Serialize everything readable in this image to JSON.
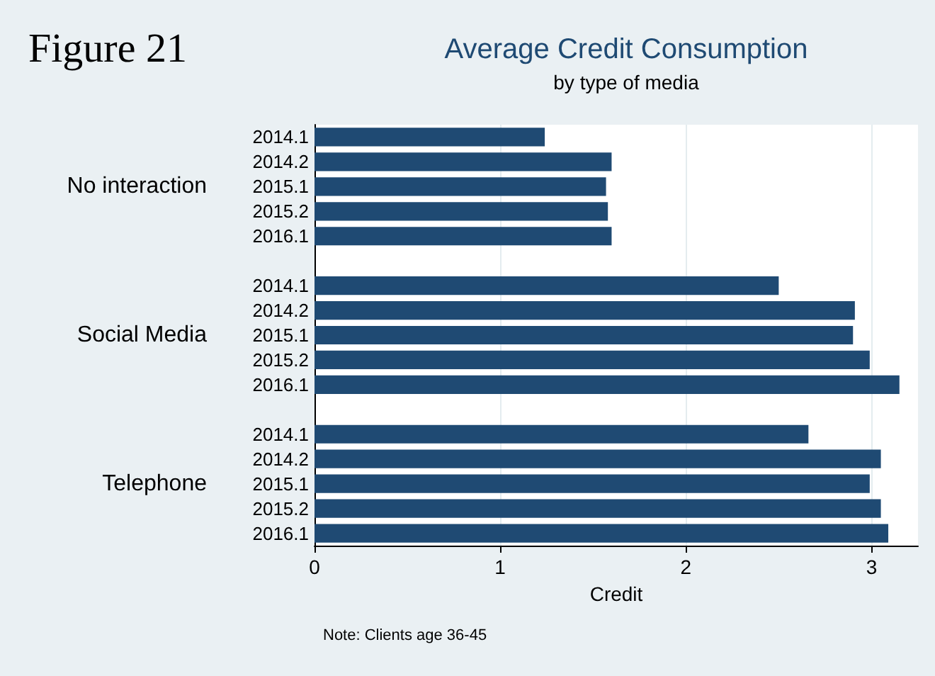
{
  "chart_data": {
    "type": "bar",
    "orientation": "horizontal",
    "title": "Average Credit Consumption",
    "subtitle": "by type of media",
    "xlabel": "Credit",
    "categories": [
      "2014.1",
      "2014.2",
      "2015.1",
      "2015.2",
      "2016.1",
      null,
      "2014.1",
      "2014.2",
      "2015.1",
      "2015.2",
      "2016.1",
      null,
      "2014.1",
      "2014.2",
      "2015.1",
      "2015.2",
      "2016.1"
    ],
    "values": [
      1.24,
      1.6,
      1.57,
      1.58,
      1.6,
      null,
      2.5,
      2.91,
      2.9,
      2.99,
      3.15,
      null,
      2.66,
      3.05,
      2.99,
      3.05,
      3.09
    ],
    "color": "#1f4a73",
    "xlim": [
      0,
      3.25
    ],
    "xticks": [
      0,
      1,
      2,
      3
    ],
    "grid": "x",
    "annotations": [
      "No interaction",
      "Social Media",
      "Telephone",
      "Note: Clients age 36-45",
      "Figure 21"
    ]
  }
}
